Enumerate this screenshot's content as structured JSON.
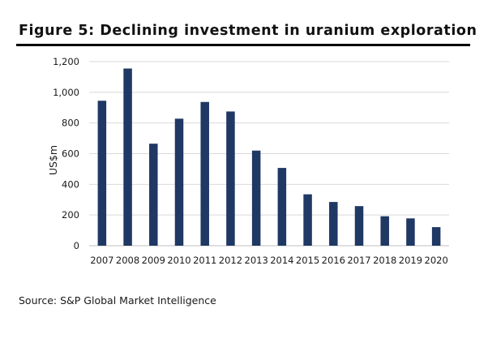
{
  "figure": {
    "title": "Figure 5: Declining investment in uranium exploration",
    "source": "Source: S&P Global Market Intelligence"
  },
  "colors": {
    "bar": "#1f3864",
    "grid": "#d9d9d9",
    "rule": "#000000"
  },
  "chart_data": {
    "type": "bar",
    "title": "Figure 5: Declining investment in uranium exploration",
    "xlabel": "",
    "ylabel": "US$m",
    "categories": [
      "2007",
      "2008",
      "2009",
      "2010",
      "2011",
      "2012",
      "2013",
      "2014",
      "2015",
      "2016",
      "2017",
      "2018",
      "2019",
      "2020"
    ],
    "values": [
      945,
      1155,
      665,
      828,
      937,
      875,
      620,
      507,
      335,
      285,
      258,
      192,
      178,
      121
    ],
    "ylim": [
      0,
      1200
    ],
    "yticks": [
      0,
      200,
      400,
      600,
      800,
      1000,
      1200
    ],
    "ytick_labels": [
      "0",
      "200",
      "400",
      "600",
      "800",
      "1,000",
      "1,200"
    ],
    "grid": true,
    "legend": "none"
  }
}
